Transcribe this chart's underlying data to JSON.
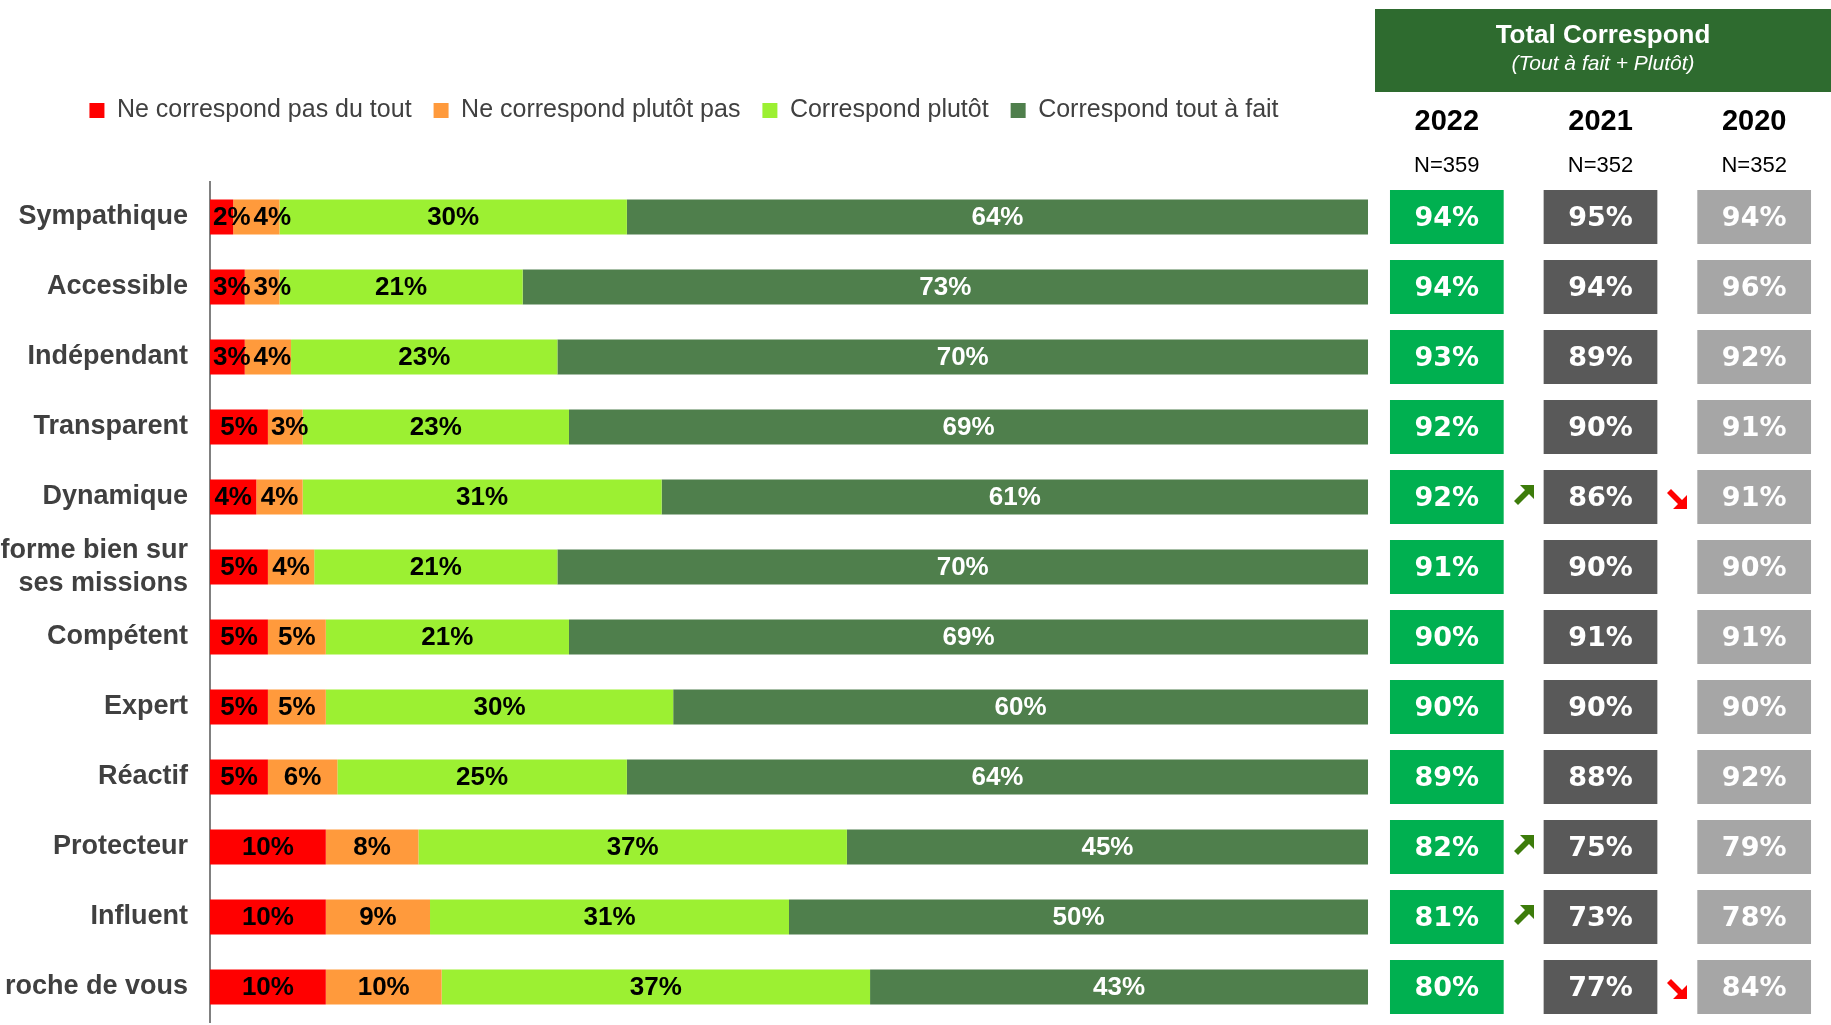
{
  "chart_data": [
    {
      "type": "bar",
      "orientation": "horizontal",
      "stacked": true,
      "categories": [
        "Sympathique",
        "Accessible",
        "Indépendant",
        "Transparent",
        "Dynamique",
        "forme bien sur ses missions",
        "Compétent",
        "Expert",
        "Réactif",
        "Protecteur",
        "Influent",
        "roche de vous"
      ],
      "series": [
        {
          "name": "Ne correspond pas du tout",
          "color": "#ff0000",
          "values": [
            2,
            3,
            3,
            5,
            4,
            5,
            5,
            5,
            5,
            10,
            10,
            10
          ],
          "value_labels": [
            "2%",
            "3%",
            "3%",
            "5%",
            "4%",
            "5%",
            "5%",
            "5%",
            "5%",
            "10%",
            "10%",
            "10%"
          ]
        },
        {
          "name": "Ne correspond plutôt pas",
          "color": "#ff9a3c",
          "values": [
            4,
            3,
            4,
            3,
            4,
            4,
            5,
            5,
            6,
            8,
            9,
            10
          ],
          "value_labels": [
            "4%",
            "3%",
            "4%",
            "3%",
            "4%",
            "4%",
            "5%",
            "5%",
            "6%",
            "8%",
            "9%",
            "10%"
          ]
        },
        {
          "name": "Correspond plutôt",
          "color": "#9cf032",
          "values": [
            30,
            21,
            23,
            23,
            31,
            21,
            21,
            30,
            25,
            37,
            31,
            37
          ],
          "value_labels": [
            "30%",
            "21%",
            "23%",
            "23%",
            "31%",
            "21%",
            "21%",
            "30%",
            "25%",
            "37%",
            "31%",
            "37%"
          ]
        },
        {
          "name": "Correspond tout à fait",
          "color": "#4f7f4c",
          "values": [
            64,
            73,
            70,
            69,
            61,
            70,
            69,
            60,
            64,
            45,
            50,
            43
          ],
          "value_labels": [
            "64%",
            "73%",
            "70%",
            "69%",
            "61%",
            "70%",
            "69%",
            "60%",
            "64%",
            "45%",
            "50%",
            "43%"
          ]
        }
      ],
      "xlim": [
        0,
        100
      ],
      "legend": "top",
      "tick_labels": "y"
    },
    {
      "type": "heatmap",
      "title": "Total Correspond",
      "subtitle": "(Tout à fait + Plutôt)",
      "categories": [
        "2022",
        "2021",
        "2020"
      ],
      "y_categories": [
        null,
        null,
        null,
        null,
        null,
        null,
        null,
        null,
        null,
        null,
        null,
        null
      ],
      "tick_labels": "x",
      "annotations": [
        "N=359",
        "N=352",
        "N=352"
      ],
      "cells": [
        [
          94,
          95,
          94
        ],
        [
          94,
          94,
          96
        ],
        [
          93,
          89,
          92
        ],
        [
          92,
          90,
          91
        ],
        [
          92,
          86,
          91
        ],
        [
          91,
          90,
          90
        ],
        [
          90,
          91,
          91
        ],
        [
          90,
          90,
          90
        ],
        [
          89,
          88,
          92
        ],
        [
          82,
          75,
          79
        ],
        [
          81,
          73,
          78
        ],
        [
          80,
          77,
          84
        ]
      ],
      "cell_labels": [
        [
          "94%",
          "95%",
          "94%"
        ],
        [
          "94%",
          "94%",
          "96%"
        ],
        [
          "93%",
          "89%",
          "92%"
        ],
        [
          "92%",
          "90%",
          "91%"
        ],
        [
          "92%",
          "86%",
          "91%"
        ],
        [
          "91%",
          "90%",
          "90%"
        ],
        [
          "90%",
          "91%",
          "91%"
        ],
        [
          "90%",
          "90%",
          "90%"
        ],
        [
          "89%",
          "88%",
          "92%"
        ],
        [
          "82%",
          "75%",
          "79%"
        ],
        [
          "81%",
          "73%",
          "78%"
        ],
        [
          "80%",
          "77%",
          "84%"
        ]
      ],
      "colors": [
        [
          "#00b050",
          "#595959",
          "#a6a6a6"
        ],
        [
          "#00b050",
          "#595959",
          "#a6a6a6"
        ],
        [
          "#00b050",
          "#595959",
          "#a6a6a6"
        ],
        [
          "#00b050",
          "#595959",
          "#a6a6a6"
        ],
        [
          "#00b050",
          "#595959",
          "#a6a6a6"
        ],
        [
          "#00b050",
          "#595959",
          "#a6a6a6"
        ],
        [
          "#00b050",
          "#595959",
          "#a6a6a6"
        ],
        [
          "#00b050",
          "#595959",
          "#a6a6a6"
        ],
        [
          "#00b050",
          "#595959",
          "#a6a6a6"
        ],
        [
          "#00b050",
          "#595959",
          "#a6a6a6"
        ],
        [
          "#00b050",
          "#595959",
          "#a6a6a6"
        ],
        [
          "#00b050",
          "#595959",
          "#a6a6a6"
        ]
      ]
    }
  ]
}
